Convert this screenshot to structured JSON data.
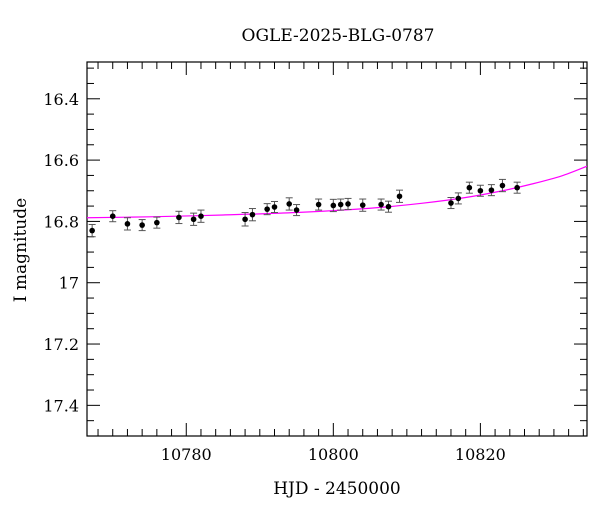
{
  "chart_data": {
    "type": "scatter",
    "title": "OGLE-2025-BLG-0787",
    "xlabel": "HJD - 2450000",
    "ylabel": "I magnitude",
    "xlim": [
      10766.5,
      10834.5
    ],
    "ylim": [
      17.5,
      16.28
    ],
    "y_inverted": true,
    "x_ticks": [
      10780,
      10800,
      10820
    ],
    "x_tick_labels": [
      "10780",
      "10800",
      "10820"
    ],
    "y_ticks": [
      16.4,
      16.6,
      16.8,
      17.0,
      17.2,
      17.4
    ],
    "y_tick_labels": [
      "16.4",
      "16.6",
      "16.8",
      "17",
      "17.2",
      "17.4"
    ],
    "x_minor_step": 2,
    "y_minor_step": 0.05,
    "grid": false,
    "colors": {
      "points": "#000000",
      "model": "#ff00ff",
      "errorbar": "#555555"
    },
    "series": [
      {
        "kind": "points_with_errorbars",
        "x": [
          10767.2,
          10770.0,
          10772.0,
          10774.0,
          10776.0,
          10779.0,
          10781.0,
          10782.0,
          10788.0,
          10789.0,
          10791.0,
          10792.0,
          10794.0,
          10795.0,
          10798.0,
          10800.0,
          10801.0,
          10802.0,
          10804.0,
          10806.5,
          10807.5,
          10809.0,
          10816.0,
          10817.0,
          10818.5,
          10820.0,
          10821.5,
          10823.0,
          10825.0
        ],
        "y": [
          16.83,
          16.783,
          16.808,
          16.812,
          16.804,
          16.787,
          16.793,
          16.783,
          16.793,
          16.778,
          16.76,
          16.753,
          16.743,
          16.763,
          16.745,
          16.748,
          16.745,
          16.743,
          16.747,
          16.745,
          16.752,
          16.718,
          16.74,
          16.725,
          16.69,
          16.7,
          16.698,
          16.683,
          16.69
        ],
        "err": [
          0.02,
          0.018,
          0.02,
          0.018,
          0.018,
          0.02,
          0.02,
          0.02,
          0.022,
          0.02,
          0.018,
          0.018,
          0.02,
          0.018,
          0.018,
          0.02,
          0.018,
          0.018,
          0.02,
          0.018,
          0.018,
          0.02,
          0.018,
          0.018,
          0.018,
          0.018,
          0.018,
          0.02,
          0.018
        ]
      },
      {
        "kind": "model_curve",
        "x": [
          10766.5,
          10775.0,
          10785.0,
          10795.0,
          10805.0,
          10812.0,
          10818.0,
          10823.0,
          10827.0,
          10831.0,
          10834.5
        ],
        "y": [
          16.788,
          16.785,
          16.779,
          16.771,
          16.757,
          16.741,
          16.722,
          16.7,
          16.678,
          16.652,
          16.62
        ]
      }
    ]
  }
}
